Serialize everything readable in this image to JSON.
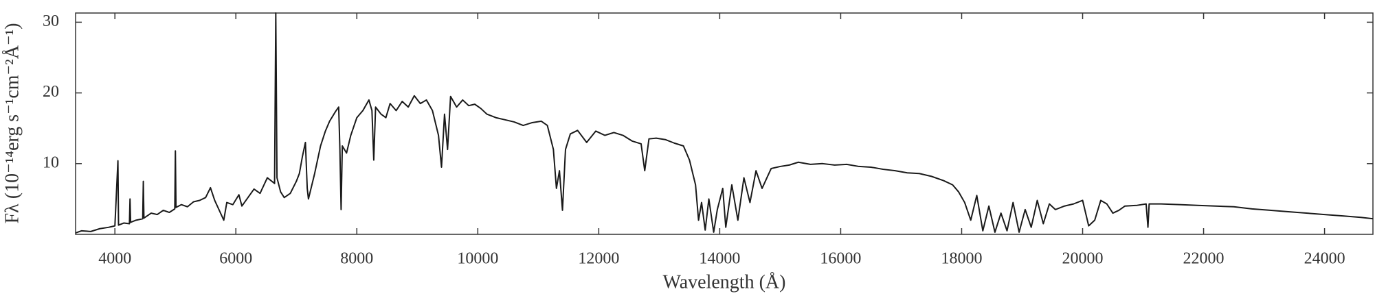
{
  "chart_data": {
    "type": "line",
    "xlabel": "Wavelength (Å)",
    "ylabel": "Fλ (10⁻¹⁴erg s⁻¹cm⁻²Å⁻¹)",
    "color": "#1a1a1a",
    "xlim": [
      3350,
      24800
    ],
    "ylim": [
      0,
      31.3
    ],
    "xticks": [
      4000,
      6000,
      8000,
      10000,
      12000,
      14000,
      16000,
      18000,
      20000,
      22000,
      24000
    ],
    "yticks": [
      10,
      20,
      30
    ],
    "x": [
      3350,
      3450,
      3600,
      3750,
      3900,
      4000,
      4050,
      4060,
      4150,
      4240,
      4250,
      4260,
      4350,
      4460,
      4470,
      4480,
      4600,
      4700,
      4800,
      4900,
      4990,
      5000,
      5010,
      5100,
      5200,
      5300,
      5400,
      5500,
      5580,
      5650,
      5720,
      5800,
      5850,
      5950,
      6050,
      6100,
      6200,
      6300,
      6400,
      6520,
      6640,
      6660,
      6680,
      6740,
      6800,
      6900,
      7000,
      7050,
      7100,
      7150,
      7180,
      7200,
      7300,
      7400,
      7480,
      7550,
      7650,
      7700,
      7720,
      7740,
      7760,
      7830,
      7900,
      8000,
      8100,
      8200,
      8250,
      8280,
      8310,
      8400,
      8480,
      8550,
      8650,
      8750,
      8850,
      8950,
      9050,
      9150,
      9250,
      9350,
      9400,
      9450,
      9500,
      9550,
      9650,
      9750,
      9850,
      9950,
      10050,
      10150,
      10300,
      10450,
      10600,
      10750,
      10900,
      11050,
      11150,
      11250,
      11300,
      11350,
      11400,
      11450,
      11530,
      11650,
      11800,
      11950,
      12100,
      12250,
      12400,
      12550,
      12700,
      12760,
      12830,
      12950,
      13100,
      13250,
      13400,
      13500,
      13600,
      13650,
      13700,
      13760,
      13820,
      13900,
      13960,
      14050,
      14100,
      14200,
      14300,
      14400,
      14500,
      14600,
      14700,
      14850,
      15000,
      15150,
      15300,
      15500,
      15700,
      15900,
      16100,
      16300,
      16500,
      16700,
      16900,
      17100,
      17300,
      17500,
      17700,
      17850,
      17950,
      18050,
      18150,
      18250,
      18350,
      18450,
      18550,
      18650,
      18750,
      18850,
      18950,
      19050,
      19150,
      19250,
      19350,
      19450,
      19550,
      19700,
      19850,
      20000,
      20050,
      20100,
      20200,
      20300,
      20400,
      20500,
      20600,
      20700,
      20900,
      21050,
      21080,
      21100,
      21300,
      21600,
      21900,
      22200,
      22500,
      22800,
      23100,
      23400,
      23700,
      24000,
      24300,
      24600,
      24800
    ],
    "values": [
      0.2,
      0.5,
      0.4,
      0.8,
      1.0,
      1.2,
      10.4,
      1.3,
      1.6,
      1.5,
      5.0,
      1.7,
      2.0,
      2.2,
      7.5,
      2.3,
      3.0,
      2.8,
      3.4,
      3.1,
      3.6,
      11.8,
      3.8,
      4.2,
      3.9,
      4.6,
      4.8,
      5.2,
      6.6,
      4.8,
      3.5,
      2.0,
      4.5,
      4.2,
      5.6,
      4.0,
      5.2,
      6.4,
      5.8,
      8.0,
      7.2,
      31.3,
      8.0,
      6.0,
      5.2,
      5.8,
      7.5,
      8.6,
      11.0,
      13.0,
      6.5,
      5.0,
      8.5,
      12.5,
      14.6,
      16.0,
      17.4,
      18.0,
      12,
      3.5,
      12.5,
      11.5,
      14,
      16.5,
      17.5,
      19.0,
      17.5,
      10.5,
      18.0,
      17.0,
      16.5,
      18.5,
      17.5,
      18.8,
      18.0,
      19.6,
      18.5,
      19.0,
      17.5,
      14.0,
      9.5,
      17.0,
      12.0,
      19.5,
      18.0,
      19.0,
      18.2,
      18.4,
      17.8,
      17.0,
      16.5,
      16.2,
      15.9,
      15.4,
      15.8,
      16.0,
      15.4,
      12.0,
      6.5,
      9.0,
      3.4,
      12.0,
      14.2,
      14.7,
      13.0,
      14.6,
      14.0,
      14.4,
      14.0,
      13.2,
      12.8,
      9.0,
      13.5,
      13.6,
      13.4,
      12.9,
      12.5,
      10.5,
      7.0,
      2.0,
      4.5,
      0.6,
      5.0,
      0.3,
      3.5,
      6.5,
      1.0,
      7.0,
      2.0,
      8.0,
      4.5,
      9.0,
      6.5,
      9.3,
      9.6,
      9.8,
      10.2,
      9.9,
      10.0,
      9.8,
      9.9,
      9.6,
      9.5,
      9.2,
      9.0,
      8.7,
      8.6,
      8.2,
      7.6,
      7.0,
      6.0,
      4.5,
      2.0,
      5.5,
      0.5,
      4.0,
      0.3,
      3.0,
      0.5,
      4.5,
      0.3,
      3.5,
      1.0,
      4.8,
      1.5,
      4.3,
      3.5,
      4.0,
      4.3,
      4.8,
      3.0,
      1.2,
      2.0,
      4.8,
      4.3,
      3.0,
      3.4,
      4.0,
      4.1,
      4.3,
      1.0,
      4.3,
      4.3,
      4.2,
      4.1,
      4.0,
      3.9,
      3.6,
      3.4,
      3.2,
      3.0,
      2.8,
      2.6,
      2.4,
      2.2
    ]
  }
}
